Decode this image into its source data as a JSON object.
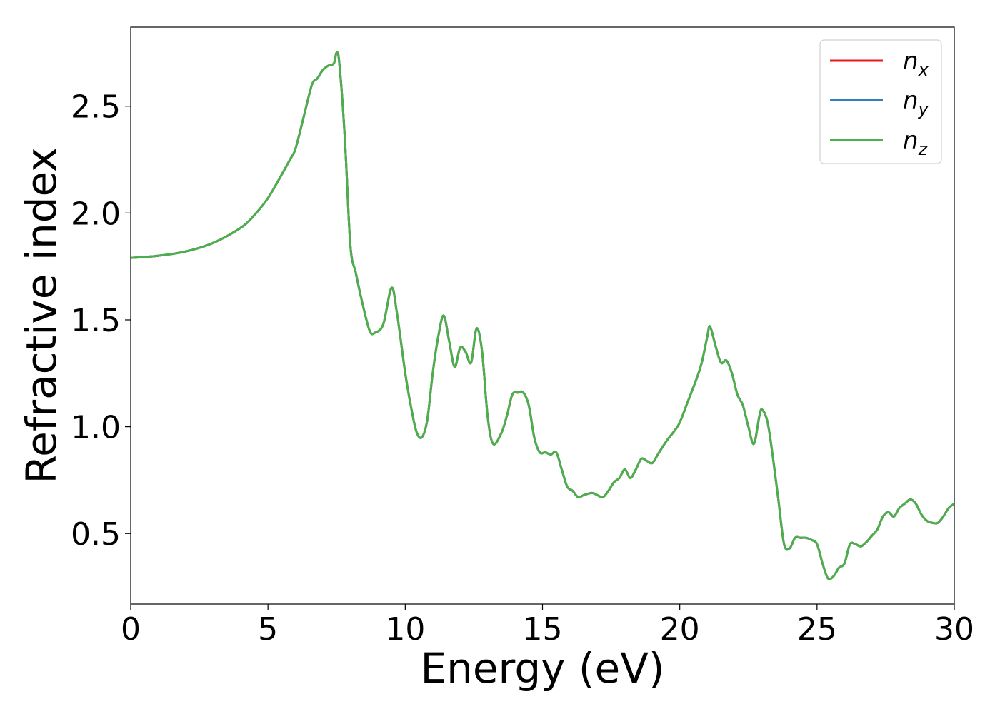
{
  "chart_data": {
    "type": "line",
    "title": "",
    "xlabel": "Energy (eV)",
    "ylabel": "Refractive index",
    "xlim": [
      0,
      30
    ],
    "ylim": [
      0.17,
      2.87
    ],
    "xticks": [
      "0",
      "5",
      "10",
      "15",
      "20",
      "25",
      "30"
    ],
    "yticks": [
      "0.5",
      "1.0",
      "1.5",
      "2.0",
      "2.5"
    ],
    "xtick_values": [
      0,
      5,
      10,
      15,
      20,
      25,
      30
    ],
    "ytick_values": [
      0.5,
      1.0,
      1.5,
      2.0,
      2.5
    ],
    "grid": false,
    "legend_position": "top-right",
    "x": [
      0,
      1,
      2,
      3,
      4,
      4.5,
      5,
      5.5,
      5.8,
      6.0,
      6.3,
      6.6,
      6.8,
      7.0,
      7.2,
      7.4,
      7.5,
      7.6,
      7.8,
      8.0,
      8.2,
      8.4,
      8.7,
      8.9,
      9.2,
      9.5,
      9.7,
      10.0,
      10.2,
      10.4,
      10.6,
      10.8,
      11.0,
      11.2,
      11.4,
      11.6,
      11.8,
      12.0,
      12.2,
      12.4,
      12.6,
      12.8,
      13.0,
      13.2,
      13.5,
      13.7,
      13.9,
      14.1,
      14.3,
      14.5,
      14.7,
      14.9,
      15.1,
      15.3,
      15.5,
      15.7,
      15.9,
      16.1,
      16.3,
      16.5,
      16.8,
      17.0,
      17.2,
      17.4,
      17.6,
      17.8,
      18.0,
      18.2,
      18.4,
      18.6,
      18.8,
      19.0,
      19.2,
      19.5,
      19.8,
      20.0,
      20.3,
      20.6,
      20.8,
      21.0,
      21.1,
      21.3,
      21.5,
      21.7,
      21.9,
      22.1,
      22.3,
      22.5,
      22.7,
      22.9,
      23.0,
      23.2,
      23.4,
      23.6,
      23.8,
      24.0,
      24.2,
      24.4,
      24.6,
      24.8,
      25.0,
      25.2,
      25.4,
      25.6,
      25.8,
      26.0,
      26.2,
      26.4,
      26.6,
      26.8,
      27.0,
      27.2,
      27.4,
      27.6,
      27.8,
      28.0,
      28.2,
      28.4,
      28.6,
      28.8,
      29.0,
      29.2,
      29.4,
      29.6,
      29.8,
      30.0
    ],
    "series": [
      {
        "name": "n_x",
        "color": "#e41a1c",
        "y": [
          1.79,
          1.8,
          1.82,
          1.86,
          1.93,
          1.99,
          2.07,
          2.18,
          2.25,
          2.3,
          2.45,
          2.6,
          2.63,
          2.67,
          2.69,
          2.7,
          2.75,
          2.7,
          2.35,
          1.85,
          1.72,
          1.6,
          1.45,
          1.44,
          1.48,
          1.65,
          1.53,
          1.25,
          1.1,
          0.98,
          0.95,
          1.03,
          1.25,
          1.42,
          1.52,
          1.4,
          1.28,
          1.37,
          1.35,
          1.3,
          1.46,
          1.35,
          1.05,
          0.92,
          0.97,
          1.05,
          1.15,
          1.16,
          1.16,
          1.1,
          0.95,
          0.88,
          0.88,
          0.87,
          0.88,
          0.8,
          0.72,
          0.7,
          0.67,
          0.68,
          0.69,
          0.68,
          0.67,
          0.7,
          0.74,
          0.76,
          0.8,
          0.76,
          0.8,
          0.85,
          0.84,
          0.83,
          0.87,
          0.93,
          0.98,
          1.02,
          1.12,
          1.22,
          1.3,
          1.42,
          1.47,
          1.38,
          1.3,
          1.31,
          1.25,
          1.15,
          1.1,
          1.0,
          0.92,
          1.05,
          1.08,
          1.02,
          0.85,
          0.65,
          0.45,
          0.43,
          0.48,
          0.48,
          0.48,
          0.47,
          0.45,
          0.36,
          0.29,
          0.3,
          0.34,
          0.36,
          0.45,
          0.45,
          0.44,
          0.46,
          0.49,
          0.52,
          0.58,
          0.6,
          0.58,
          0.62,
          0.64,
          0.66,
          0.64,
          0.59,
          0.56,
          0.55,
          0.55,
          0.58,
          0.62,
          0.64
        ]
      },
      {
        "name": "n_y",
        "color": "#377eb8",
        "y": [
          1.79,
          1.8,
          1.82,
          1.86,
          1.93,
          1.99,
          2.07,
          2.18,
          2.25,
          2.3,
          2.45,
          2.6,
          2.63,
          2.67,
          2.69,
          2.7,
          2.75,
          2.7,
          2.35,
          1.85,
          1.72,
          1.6,
          1.45,
          1.44,
          1.48,
          1.65,
          1.53,
          1.25,
          1.1,
          0.98,
          0.95,
          1.03,
          1.25,
          1.42,
          1.52,
          1.4,
          1.28,
          1.37,
          1.35,
          1.3,
          1.46,
          1.35,
          1.05,
          0.92,
          0.97,
          1.05,
          1.15,
          1.16,
          1.16,
          1.1,
          0.95,
          0.88,
          0.88,
          0.87,
          0.88,
          0.8,
          0.72,
          0.7,
          0.67,
          0.68,
          0.69,
          0.68,
          0.67,
          0.7,
          0.74,
          0.76,
          0.8,
          0.76,
          0.8,
          0.85,
          0.84,
          0.83,
          0.87,
          0.93,
          0.98,
          1.02,
          1.12,
          1.22,
          1.3,
          1.42,
          1.47,
          1.38,
          1.3,
          1.31,
          1.25,
          1.15,
          1.1,
          1.0,
          0.92,
          1.05,
          1.08,
          1.02,
          0.85,
          0.65,
          0.45,
          0.43,
          0.48,
          0.48,
          0.48,
          0.47,
          0.45,
          0.36,
          0.29,
          0.3,
          0.34,
          0.36,
          0.45,
          0.45,
          0.44,
          0.46,
          0.49,
          0.52,
          0.58,
          0.6,
          0.58,
          0.62,
          0.64,
          0.66,
          0.64,
          0.59,
          0.56,
          0.55,
          0.55,
          0.58,
          0.62,
          0.64
        ]
      },
      {
        "name": "n_z",
        "color": "#4daf4a",
        "y": [
          1.79,
          1.8,
          1.82,
          1.86,
          1.93,
          1.99,
          2.07,
          2.18,
          2.25,
          2.3,
          2.45,
          2.6,
          2.63,
          2.67,
          2.69,
          2.7,
          2.75,
          2.7,
          2.35,
          1.85,
          1.72,
          1.6,
          1.45,
          1.44,
          1.48,
          1.65,
          1.53,
          1.25,
          1.1,
          0.98,
          0.95,
          1.03,
          1.25,
          1.42,
          1.52,
          1.4,
          1.28,
          1.37,
          1.35,
          1.3,
          1.46,
          1.35,
          1.05,
          0.92,
          0.97,
          1.05,
          1.15,
          1.16,
          1.16,
          1.1,
          0.95,
          0.88,
          0.88,
          0.87,
          0.88,
          0.8,
          0.72,
          0.7,
          0.67,
          0.68,
          0.69,
          0.68,
          0.67,
          0.7,
          0.74,
          0.76,
          0.8,
          0.76,
          0.8,
          0.85,
          0.84,
          0.83,
          0.87,
          0.93,
          0.98,
          1.02,
          1.12,
          1.22,
          1.3,
          1.42,
          1.47,
          1.38,
          1.3,
          1.31,
          1.25,
          1.15,
          1.1,
          1.0,
          0.92,
          1.05,
          1.08,
          1.02,
          0.85,
          0.65,
          0.45,
          0.43,
          0.48,
          0.48,
          0.48,
          0.47,
          0.45,
          0.36,
          0.29,
          0.3,
          0.34,
          0.36,
          0.45,
          0.45,
          0.44,
          0.46,
          0.49,
          0.52,
          0.58,
          0.6,
          0.58,
          0.62,
          0.64,
          0.66,
          0.64,
          0.59,
          0.56,
          0.55,
          0.55,
          0.58,
          0.62,
          0.64
        ]
      }
    ],
    "legend": [
      {
        "base": "n",
        "sub": "x"
      },
      {
        "base": "n",
        "sub": "y"
      },
      {
        "base": "n",
        "sub": "z"
      }
    ]
  }
}
